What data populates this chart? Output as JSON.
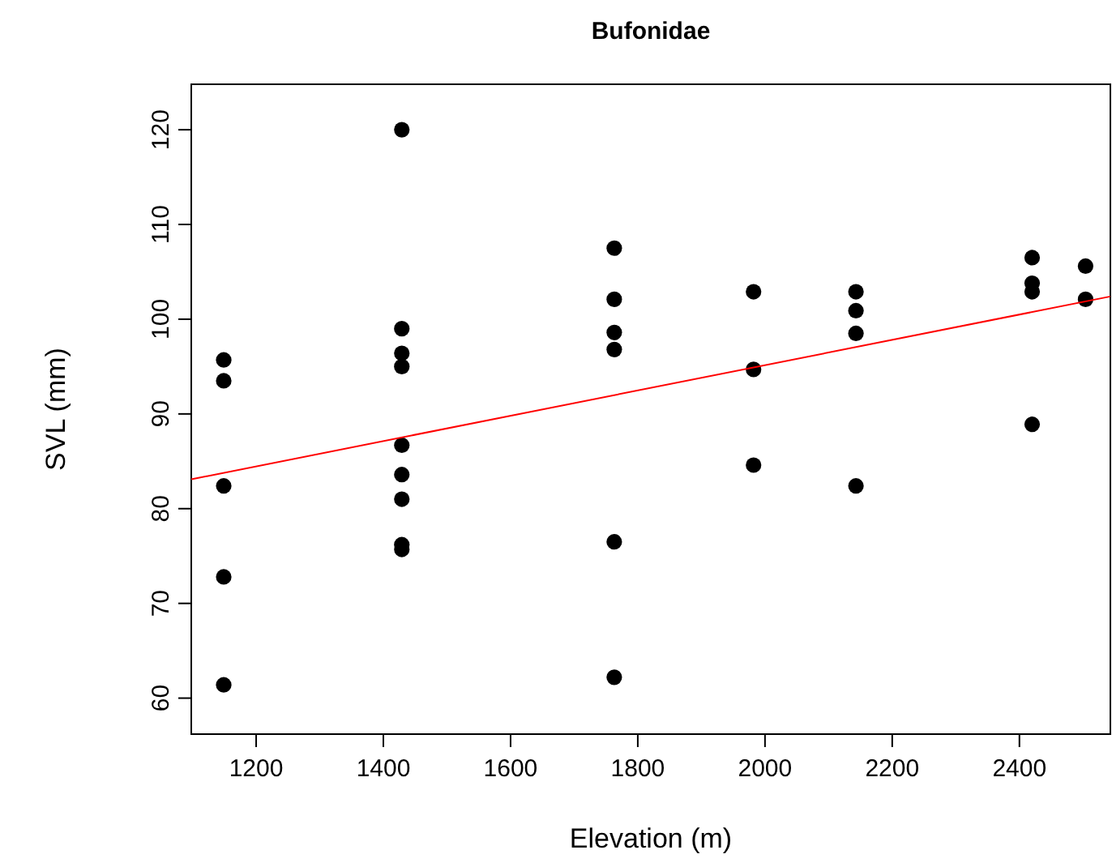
{
  "chart_data": {
    "type": "scatter",
    "title": "Bufonidae",
    "xlabel": "Elevation (m)",
    "ylabel": "SVL (mm)",
    "xlim": [
      1098,
      2543
    ],
    "ylim": [
      56.2,
      124.8
    ],
    "xticks": [
      1200,
      1400,
      1600,
      1800,
      2000,
      2200,
      2400
    ],
    "yticks": [
      60,
      70,
      80,
      90,
      100,
      110,
      120
    ],
    "grid": false,
    "marker": "circle",
    "series": [
      {
        "color": "#000000",
        "x": [
          1149,
          1149,
          1149,
          1149,
          1149,
          1429,
          1429,
          1429,
          1429,
          1429,
          1429,
          1429,
          1429,
          1429,
          1763,
          1763,
          1763,
          1763,
          1763,
          1763,
          1982,
          1982,
          1982,
          2143,
          2143,
          2143,
          2143,
          2420,
          2420,
          2420,
          2420,
          2504,
          2504
        ],
        "values": [
          95.7,
          93.5,
          82.4,
          72.8,
          61.4,
          120,
          99,
          96.4,
          95,
          86.7,
          83.6,
          81,
          76.2,
          75.7,
          107.5,
          102.1,
          98.6,
          96.8,
          76.5,
          62.2,
          102.9,
          94.7,
          84.6,
          102.9,
          100.9,
          98.5,
          82.4,
          106.5,
          103.8,
          102.9,
          88.9,
          105.6,
          102.1
        ]
      },
      {
        "type": "line",
        "marker": "none",
        "color": "#ff0000",
        "x": [
          1098,
          2543
        ],
        "values": [
          83.1,
          102.4
        ]
      }
    ]
  }
}
